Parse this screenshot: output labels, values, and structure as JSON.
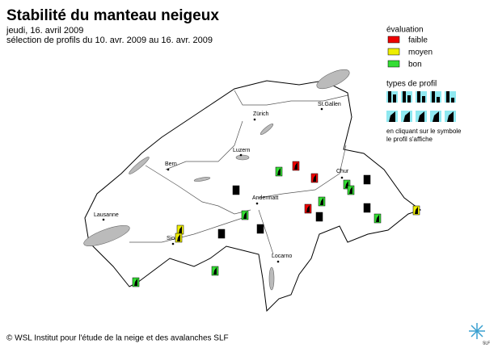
{
  "header": {
    "title": "Stabilité du manteau neigeux",
    "date": "jeudi, 16. avril 2009",
    "selection": "sélection de profils du 10. avr. 2009 au 16. avr. 2009"
  },
  "legend": {
    "title": "évaluation",
    "items": [
      "faible",
      "moyen",
      "bon"
    ]
  },
  "profile_types": {
    "title": "types de profil",
    "note": [
      "en cliquant sur le symbole",
      "le profil s'affiche"
    ]
  },
  "cities": [
    "Zürich",
    "St.Gallen",
    "Luzern",
    "Bern",
    "Chur",
    "Andermatt",
    "Lausanne",
    "Sion",
    "Locarno"
  ],
  "footer": {
    "copyright": "© WSL Institut pour l'étude de la neige et des avalanches SLF",
    "logo": "SLF"
  }
}
